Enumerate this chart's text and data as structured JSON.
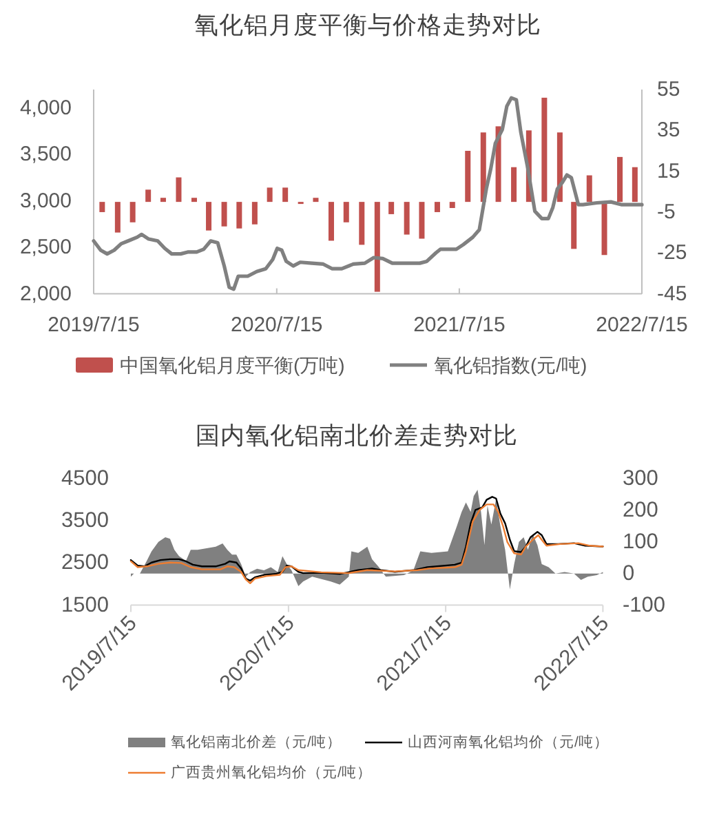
{
  "chart_data": [
    {
      "type": "bar",
      "title": "氧化铝月度平衡与价格走势对比",
      "legend": "bottom",
      "xlim": [
        "2019-07-15",
        "2022-07-15"
      ],
      "xticks": [
        {
          "value": "2019-07-15",
          "label": "2019/7/15"
        },
        {
          "value": "2020-07-15",
          "label": "2020/7/15"
        },
        {
          "value": "2021-07-15",
          "label": "2021/7/15"
        },
        {
          "value": "2022-07-15",
          "label": "2022/7/15"
        }
      ],
      "ylim": [
        2000,
        4200
      ],
      "yticks": [
        {
          "value": 2000,
          "label": "2,000"
        },
        {
          "value": 2500,
          "label": "2,500"
        },
        {
          "value": 3000,
          "label": "3,000"
        },
        {
          "value": 3500,
          "label": "3,500"
        },
        {
          "value": 4000,
          "label": "4,000"
        }
      ],
      "y2lim": [
        -45,
        55
      ],
      "y2ticks": [
        -45,
        -25,
        -5,
        15,
        35,
        55
      ],
      "series": [
        {
          "name": "中国氧化铝月度平衡(万吨)",
          "axis": "y2",
          "color": "#c0504d",
          "x": [
            "2019-08",
            "2019-09",
            "2019-10",
            "2019-11",
            "2019-12",
            "2020-01",
            "2020-02",
            "2020-03",
            "2020-04",
            "2020-05",
            "2020-06",
            "2020-07",
            "2020-08",
            "2020-09",
            "2020-10",
            "2020-11",
            "2020-12",
            "2021-01",
            "2021-02",
            "2021-03",
            "2021-04",
            "2021-05",
            "2021-06",
            "2021-07",
            "2021-08",
            "2021-09",
            "2021-10",
            "2021-11",
            "2021-12",
            "2022-01",
            "2022-02",
            "2022-03",
            "2022-04",
            "2022-05",
            "2022-06",
            "2022-07"
          ],
          "values": [
            -5,
            -15,
            -10,
            6,
            2,
            12,
            2,
            -14,
            -12,
            -13,
            -11,
            7,
            7,
            -1,
            2,
            -19,
            -10,
            -21,
            -44,
            -6,
            -16,
            -18,
            -5,
            -3,
            25,
            34,
            37,
            17,
            35,
            51,
            34,
            -23,
            13,
            -26,
            22,
            17
          ]
        },
        {
          "name": "氧化铝指数(元/吨)",
          "type": "line",
          "color": "#808080",
          "x": [
            "2019-07-15",
            "2019-07-29",
            "2019-08-11",
            "2019-08-25",
            "2019-09-08",
            "2019-09-22",
            "2019-10-10",
            "2019-10-19",
            "2019-11-02",
            "2019-11-20",
            "2019-12-04",
            "2019-12-18",
            "2020-01-05",
            "2020-01-19",
            "2020-02-06",
            "2020-02-20",
            "2020-03-05",
            "2020-03-19",
            "2020-04-01",
            "2020-04-11",
            "2020-04-20",
            "2020-04-29",
            "2020-05-18",
            "2020-06-05",
            "2020-06-23",
            "2020-07-07",
            "2020-07-16",
            "2020-07-25",
            "2020-08-03",
            "2020-08-17",
            "2020-08-31",
            "2020-09-23",
            "2020-10-16",
            "2020-11-03",
            "2020-11-22",
            "2020-12-15",
            "2021-01-07",
            "2021-01-25",
            "2021-02-12",
            "2021-03-03",
            "2021-03-26",
            "2021-04-27",
            "2021-05-11",
            "2021-05-29",
            "2021-06-07",
            "2021-07-09",
            "2021-07-23",
            "2021-08-11",
            "2021-08-24",
            "2021-09-07",
            "2021-09-16",
            "2021-09-25",
            "2021-10-09",
            "2021-10-18",
            "2021-10-27",
            "2021-11-06",
            "2021-11-15",
            "2021-11-29",
            "2021-12-13",
            "2021-12-27",
            "2022-01-09",
            "2022-01-18",
            "2022-01-27",
            "2022-02-06",
            "2022-02-15",
            "2022-02-24",
            "2022-03-10",
            "2022-03-19",
            "2022-04-16",
            "2022-05-14",
            "2022-06-05",
            "2022-07-15"
          ],
          "values": [
            2570,
            2470,
            2430,
            2470,
            2540,
            2570,
            2610,
            2640,
            2590,
            2570,
            2490,
            2430,
            2430,
            2450,
            2450,
            2480,
            2570,
            2550,
            2300,
            2070,
            2050,
            2190,
            2190,
            2240,
            2270,
            2370,
            2490,
            2470,
            2350,
            2300,
            2340,
            2330,
            2320,
            2270,
            2270,
            2320,
            2330,
            2390,
            2380,
            2330,
            2330,
            2330,
            2350,
            2440,
            2480,
            2480,
            2530,
            2610,
            2690,
            3130,
            3350,
            3620,
            3770,
            4020,
            4110,
            4090,
            3740,
            3350,
            2890,
            2810,
            2810,
            2930,
            3130,
            3200,
            3280,
            3250,
            2960,
            2960,
            2980,
            2990,
            2960,
            2960
          ]
        }
      ]
    },
    {
      "type": "area",
      "title": "国内氧化铝南北价差走势对比",
      "legend": "bottom",
      "xlim": [
        "2019-07-15",
        "2022-07-15"
      ],
      "xticks": [
        {
          "value": "2019-07-15",
          "label": "2019/7/15"
        },
        {
          "value": "2020-07-15",
          "label": "2020/7/15"
        },
        {
          "value": "2021-07-15",
          "label": "2021/7/15"
        },
        {
          "value": "2022-07-15",
          "label": "2022/7/15"
        }
      ],
      "ylim": [
        1500,
        4500
      ],
      "yticks": [
        1500,
        2500,
        3500,
        4500
      ],
      "y2lim": [
        -100,
        300
      ],
      "y2ticks": [
        -100,
        0,
        100,
        200,
        300
      ],
      "series": [
        {
          "name": "氧化铝南北价差（元/吨）",
          "axis": "y2",
          "color": "#808080",
          "x": [
            "2019-07-15",
            "2019-07-22",
            "2019-08-05",
            "2019-08-21",
            "2019-09-01",
            "2019-09-17",
            "2019-10-03",
            "2019-10-14",
            "2019-10-24",
            "2019-11-04",
            "2019-11-20",
            "2019-12-01",
            "2019-12-17",
            "2020-01-07",
            "2020-01-28",
            "2020-02-13",
            "2020-02-24",
            "2020-03-06",
            "2020-03-16",
            "2020-03-27",
            "2020-04-07",
            "2020-04-17",
            "2020-05-03",
            "2020-05-19",
            "2020-06-04",
            "2020-06-20",
            "2020-07-01",
            "2020-07-11",
            "2020-07-22",
            "2020-08-07",
            "2020-08-18",
            "2020-09-08",
            "2020-10-21",
            "2020-11-11",
            "2020-12-02",
            "2020-12-08",
            "2020-12-24",
            "2021-01-14",
            "2021-01-25",
            "2021-02-10",
            "2021-02-26",
            "2021-04-09",
            "2021-05-01",
            "2021-05-17",
            "2021-06-12",
            "2021-07-20",
            "2021-08-10",
            "2021-08-21",
            "2021-08-31",
            "2021-09-11",
            "2021-09-18",
            "2021-09-27",
            "2021-10-05",
            "2021-10-13",
            "2021-10-20",
            "2021-10-29",
            "2021-11-09",
            "2021-11-19",
            "2021-11-30",
            "2021-12-11",
            "2021-12-21",
            "2022-01-01",
            "2022-01-12",
            "2022-01-22",
            "2022-02-02",
            "2022-02-13",
            "2022-02-23",
            "2022-03-11",
            "2022-03-27",
            "2022-04-17",
            "2022-05-09",
            "2022-05-25",
            "2022-06-10",
            "2022-07-01",
            "2022-07-15"
          ],
          "values": [
            -10,
            0,
            0,
            40,
            70,
            100,
            115,
            110,
            75,
            55,
            40,
            75,
            75,
            80,
            85,
            95,
            75,
            60,
            60,
            30,
            -10,
            5,
            15,
            10,
            20,
            5,
            55,
            30,
            10,
            -40,
            -25,
            -10,
            -25,
            -35,
            -10,
            70,
            65,
            85,
            45,
            20,
            -10,
            -5,
            10,
            70,
            65,
            70,
            150,
            195,
            225,
            195,
            245,
            265,
            195,
            90,
            215,
            155,
            235,
            150,
            75,
            -50,
            30,
            100,
            115,
            75,
            125,
            90,
            30,
            20,
            0,
            5,
            0,
            -20,
            -10,
            -5,
            5
          ]
        },
        {
          "name": "山西河南氧化铝均价（元/吨）",
          "type": "line",
          "color": "#000000",
          "x": [
            "2019-07-15",
            "2019-07-31",
            "2019-08-16",
            "2019-09-01",
            "2019-09-22",
            "2019-10-14",
            "2019-11-04",
            "2019-11-20",
            "2019-12-06",
            "2019-12-27",
            "2020-01-28",
            "2020-02-19",
            "2020-02-29",
            "2020-03-16",
            "2020-03-27",
            "2020-04-07",
            "2020-04-17",
            "2020-04-28",
            "2020-05-19",
            "2020-06-15",
            "2020-07-01",
            "2020-07-11",
            "2020-07-22",
            "2020-08-07",
            "2020-08-18",
            "2020-09-29",
            "2020-11-11",
            "2020-12-24",
            "2021-01-25",
            "2021-02-15",
            "2021-03-19",
            "2021-05-01",
            "2021-06-02",
            "2021-08-05",
            "2021-08-21",
            "2021-08-31",
            "2021-09-11",
            "2021-09-22",
            "2021-10-08",
            "2021-10-18",
            "2021-10-31",
            "2021-11-09",
            "2021-11-19",
            "2021-11-30",
            "2021-12-11",
            "2021-12-21",
            "2022-01-06",
            "2022-01-17",
            "2022-01-28",
            "2022-02-13",
            "2022-02-23",
            "2022-03-06",
            "2022-04-02",
            "2022-05-09",
            "2022-06-04",
            "2022-07-15"
          ],
          "values": [
            2570,
            2440,
            2420,
            2510,
            2570,
            2590,
            2590,
            2540,
            2460,
            2420,
            2420,
            2480,
            2540,
            2510,
            2370,
            2130,
            2080,
            2160,
            2220,
            2240,
            2290,
            2440,
            2420,
            2290,
            2260,
            2270,
            2240,
            2330,
            2370,
            2330,
            2290,
            2330,
            2400,
            2460,
            2510,
            2890,
            3440,
            3760,
            3820,
            4000,
            4070,
            4030,
            3670,
            3440,
            3050,
            2780,
            2760,
            2890,
            3110,
            3240,
            3160,
            2950,
            2950,
            2970,
            2910,
            2890
          ]
        },
        {
          "name": "广西贵州氧化铝均价（元/吨）",
          "type": "line",
          "color": "#ed7d31",
          "x": [
            "2019-07-15",
            "2019-07-31",
            "2019-08-21",
            "2019-09-17",
            "2019-10-14",
            "2019-11-09",
            "2019-12-01",
            "2019-12-27",
            "2020-02-08",
            "2020-02-24",
            "2020-03-11",
            "2020-03-27",
            "2020-04-07",
            "2020-04-17",
            "2020-04-28",
            "2020-05-25",
            "2020-06-25",
            "2020-07-08",
            "2020-07-22",
            "2020-08-07",
            "2020-09-29",
            "2020-12-02",
            "2021-01-14",
            "2021-03-19",
            "2021-05-11",
            "2021-06-07",
            "2021-08-05",
            "2021-08-21",
            "2021-08-31",
            "2021-09-16",
            "2021-10-02",
            "2021-10-18",
            "2021-11-03",
            "2021-11-14",
            "2021-11-25",
            "2021-12-05",
            "2021-12-21",
            "2022-01-06",
            "2022-01-17",
            "2022-02-02",
            "2022-02-15",
            "2022-02-23",
            "2022-03-06",
            "2022-04-07",
            "2022-05-19",
            "2022-06-15",
            "2022-07-15"
          ],
          "values": [
            2540,
            2400,
            2420,
            2480,
            2510,
            2500,
            2400,
            2350,
            2350,
            2420,
            2400,
            2290,
            2110,
            2020,
            2130,
            2190,
            2220,
            2400,
            2420,
            2330,
            2280,
            2260,
            2330,
            2300,
            2330,
            2370,
            2400,
            2460,
            2780,
            3490,
            3760,
            3890,
            3890,
            3710,
            3380,
            3000,
            2730,
            2700,
            2890,
            3050,
            3160,
            3050,
            2910,
            2950,
            2970,
            2910,
            2890
          ]
        }
      ]
    }
  ]
}
